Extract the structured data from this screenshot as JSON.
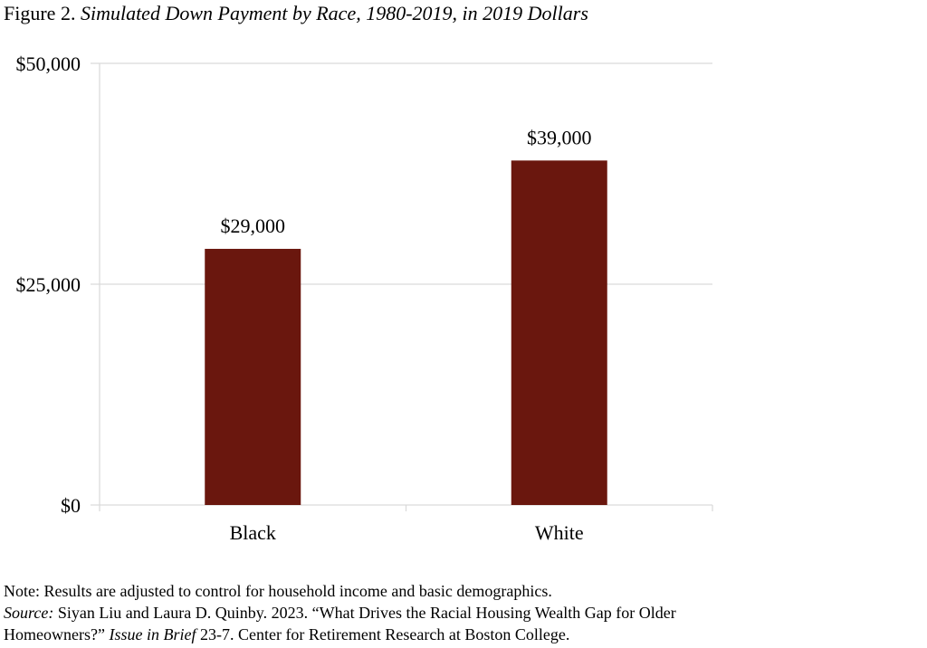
{
  "figure": {
    "label": "Figure 2.",
    "title": "Simulated Down Payment by Race, 1980-2019, in 2019 Dollars"
  },
  "chart_data": {
    "type": "bar",
    "categories": [
      "Black",
      "White"
    ],
    "values": [
      29000,
      39000
    ],
    "data_labels": [
      "$29,000",
      "$39,000"
    ],
    "ylim": [
      0,
      50000
    ],
    "yticks": [
      0,
      25000,
      50000
    ],
    "ytick_labels": [
      "$0",
      "$25,000",
      "$50,000"
    ],
    "xlabel": "",
    "ylabel": "",
    "grid": true,
    "bar_color": "#6a170e",
    "grid_color": "#d9d9d9"
  },
  "notes": {
    "note": "Note: Results are adjusted to control for household income and basic demographics.",
    "source_label": "Source:",
    "source_text_1": " Siyan Liu and Laura D. Quinby. 2023. “What Drives the Racial Housing Wealth Gap for Older",
    "source_text_2": "Homeowners?” ",
    "source_publication": "Issue in Brief",
    "source_text_3": " 23-7. Center for Retirement Research at Boston College."
  }
}
